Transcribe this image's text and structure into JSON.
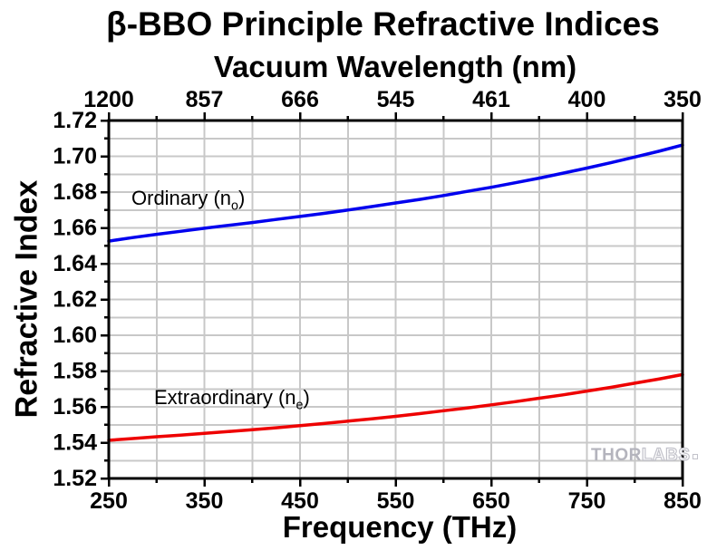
{
  "watermark": {
    "solid": "THOR",
    "outline": "LABS"
  },
  "chart_data": {
    "type": "line",
    "title": "β-BBO Principle Refractive Indices",
    "top_axis": {
      "label": "Vacuum Wavelength (nm)",
      "tick_labels": [
        "1200",
        "857",
        "666",
        "545",
        "461",
        "400",
        "350"
      ],
      "tick_positions": [
        250,
        350,
        450,
        550,
        650,
        750,
        850
      ]
    },
    "x_axis": {
      "label": "Frequency (THz)",
      "min": 250,
      "max": 850,
      "tick_labels": [
        "250",
        "350",
        "450",
        "550",
        "650",
        "750",
        "850"
      ],
      "major_ticks": [
        250,
        350,
        450,
        550,
        650,
        750,
        850
      ],
      "minor_ticks": [
        300,
        400,
        500,
        600,
        700,
        800
      ],
      "grid_step": 50
    },
    "y_axis": {
      "label": "Refractive Index",
      "min": 1.52,
      "max": 1.72,
      "tick_labels": [
        "1.72",
        "1.70",
        "1.68",
        "1.66",
        "1.64",
        "1.62",
        "1.60",
        "1.58",
        "1.56",
        "1.54",
        "1.52"
      ],
      "major_ticks": [
        1.52,
        1.54,
        1.56,
        1.58,
        1.6,
        1.62,
        1.64,
        1.66,
        1.68,
        1.7,
        1.72
      ],
      "minor_ticks": [
        1.53,
        1.55,
        1.57,
        1.59,
        1.61,
        1.63,
        1.65,
        1.67,
        1.69,
        1.71
      ],
      "grid_step": 0.01
    },
    "grid": {
      "show": true,
      "color": "#c8c8c8"
    },
    "axis_color": "#000000",
    "legend_position": "inline-labels",
    "series": [
      {
        "name": "Ordinary (n_o)",
        "label": {
          "text": "Ordinary (n",
          "sub": "o",
          "close": ")"
        },
        "color": "#0000ee",
        "x": [
          250,
          275,
          300,
          325,
          350,
          375,
          400,
          425,
          450,
          475,
          500,
          525,
          550,
          575,
          600,
          625,
          650,
          675,
          700,
          725,
          750,
          775,
          800,
          825,
          850
        ],
        "y": [
          1.6526,
          1.6546,
          1.6564,
          1.6581,
          1.6598,
          1.6614,
          1.663,
          1.6647,
          1.6664,
          1.6681,
          1.67,
          1.6719,
          1.6739,
          1.6759,
          1.6781,
          1.6804,
          1.6827,
          1.6852,
          1.6878,
          1.6906,
          1.6934,
          1.6964,
          1.6996,
          1.7028,
          1.7063
        ]
      },
      {
        "name": "Extraordinary (n_e)",
        "label": {
          "text": "Extraordinary (n",
          "sub": "e",
          "close": ")"
        },
        "color": "#ee0000",
        "x": [
          250,
          275,
          300,
          325,
          350,
          375,
          400,
          425,
          450,
          475,
          500,
          525,
          550,
          575,
          600,
          625,
          650,
          675,
          700,
          725,
          750,
          775,
          800,
          825,
          850
        ],
        "y": [
          1.5413,
          1.5423,
          1.5433,
          1.5442,
          1.5452,
          1.5462,
          1.5472,
          1.5483,
          1.5495,
          1.5507,
          1.552,
          1.5533,
          1.5547,
          1.5562,
          1.5578,
          1.5594,
          1.5611,
          1.5629,
          1.5648,
          1.5667,
          1.5688,
          1.5709,
          1.5732,
          1.5755,
          1.578
        ]
      }
    ]
  }
}
